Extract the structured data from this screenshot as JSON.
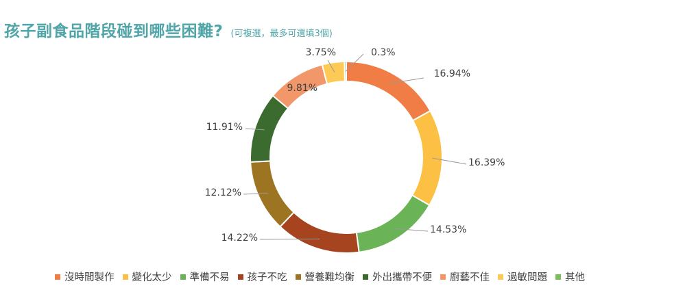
{
  "header": {
    "title": "孩子副食品階段碰到哪些困難?",
    "subtitle": "(可複選，最多可選填3個)"
  },
  "colors": {
    "title": "#4fa5a7",
    "label_text": "#404040",
    "leader_line": "#999999"
  },
  "chart_data": {
    "type": "pie",
    "variant": "donut",
    "title": "孩子副食品階段碰到哪些困難?",
    "legend_position": "bottom",
    "series": [
      {
        "name": "沒時間製作",
        "value": 16.94,
        "label": "16.94%",
        "color": "#f07d45"
      },
      {
        "name": "變化太少",
        "value": 16.39,
        "label": "16.39%",
        "color": "#fcc044"
      },
      {
        "name": "準備不易",
        "value": 14.53,
        "label": "14.53%",
        "color": "#6ab457"
      },
      {
        "name": "孩子不吃",
        "value": 14.22,
        "label": "14.22%",
        "color": "#a5441e"
      },
      {
        "name": "營養難均衡",
        "value": 12.12,
        "label": "12.12%",
        "color": "#9c7422"
      },
      {
        "name": "外出攜帶不便",
        "value": 11.91,
        "label": "11.91%",
        "color": "#3c6b2f"
      },
      {
        "name": "廚藝不佳",
        "value": 9.81,
        "label": "9.81%",
        "color": "#f2976a"
      },
      {
        "name": "過敏問題",
        "value": 3.75,
        "label": "3.75%",
        "color": "#fdcb55"
      },
      {
        "name": "其他",
        "value": 0.3,
        "label": "0.3%",
        "color": "#7cbf5a"
      }
    ]
  }
}
